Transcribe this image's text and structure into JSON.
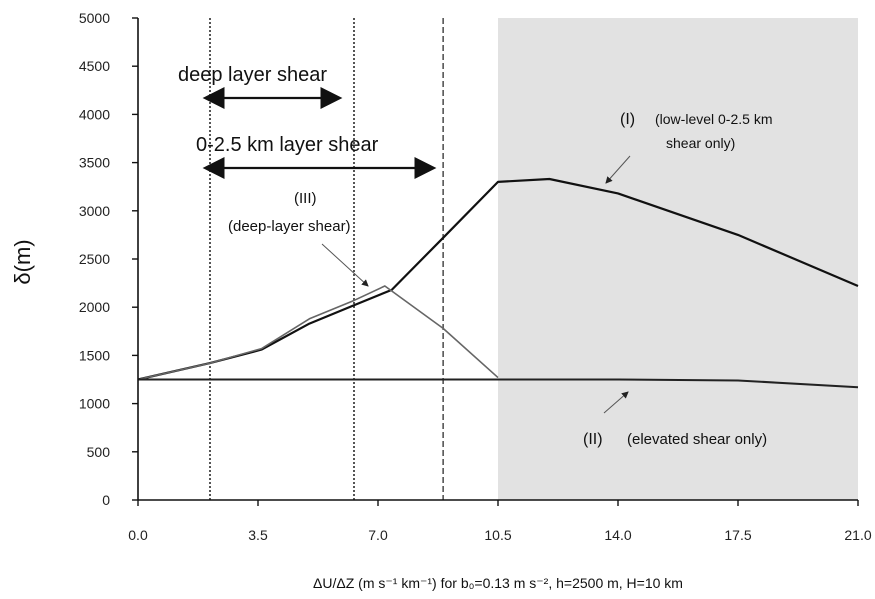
{
  "chart_data": {
    "type": "line",
    "ylabel": "δ(m)",
    "xlabel": "ΔU/ΔZ (m s⁻¹ km⁻¹) for  b₀=0.13 m s⁻², h=2500 m, H=10 km",
    "xlim": [
      0,
      21
    ],
    "ylim": [
      0,
      5000
    ],
    "x_ticks": [
      0.0,
      3.5,
      7.0,
      10.5,
      14.0,
      17.5,
      21.0
    ],
    "x_tick_labels": [
      "0.0",
      "3.5",
      "7.0",
      "10.5",
      "14.0",
      "17.5",
      "21.0"
    ],
    "y_ticks": [
      0,
      500,
      1000,
      1500,
      2000,
      2500,
      3000,
      3500,
      4000,
      4500,
      5000
    ],
    "y_tick_labels": [
      "0",
      "500",
      "1000",
      "1500",
      "2000",
      "2500",
      "3000",
      "3500",
      "4000",
      "4500",
      "5000"
    ],
    "grid": false,
    "legend": "none",
    "shaded_region": {
      "x": [
        10.5,
        21.0
      ],
      "color": "#e2e2e2"
    },
    "vertical_lines": [
      {
        "x": 2.1,
        "style": "dotted"
      },
      {
        "x": 6.3,
        "style": "dotted"
      },
      {
        "x": 8.9,
        "style": "dashed"
      }
    ],
    "series": [
      {
        "x": [
          0,
          2.1,
          3.6,
          5.0,
          6.3,
          7.4,
          8.9,
          10.5,
          12.0,
          14.0,
          17.5,
          21.0
        ],
        "y": [
          1250,
          1420,
          1560,
          1830,
          2020,
          2180,
          2720,
          3300,
          3330,
          3180,
          2750,
          2220
        ],
        "color": "#111111",
        "width": 2.2
      },
      {
        "x": [
          0,
          2.1,
          3.6,
          5.0,
          6.3,
          7.2,
          8.9,
          10.5
        ],
        "y": [
          1250,
          1420,
          1570,
          1880,
          2070,
          2220,
          1780,
          1270
        ],
        "color": "#666666",
        "width": 1.6
      },
      {
        "x": [
          0,
          10.5,
          14.0,
          17.5,
          21.0
        ],
        "y": [
          1250,
          1250,
          1250,
          1240,
          1170
        ],
        "color": "#222222",
        "width": 2.0
      }
    ],
    "annotations": {
      "deep_layer_shear": "deep layer shear",
      "layer_0_25_shear": "0-2.5 km layer shear",
      "label_I": "(I)",
      "label_I_desc_line1": "(low-level 0-2.5 km",
      "label_I_desc_line2": "shear only)",
      "label_II": "(II)",
      "label_II_desc": "(elevated shear only)",
      "label_III": "(III)",
      "label_III_desc": "(deep-layer shear)"
    }
  }
}
